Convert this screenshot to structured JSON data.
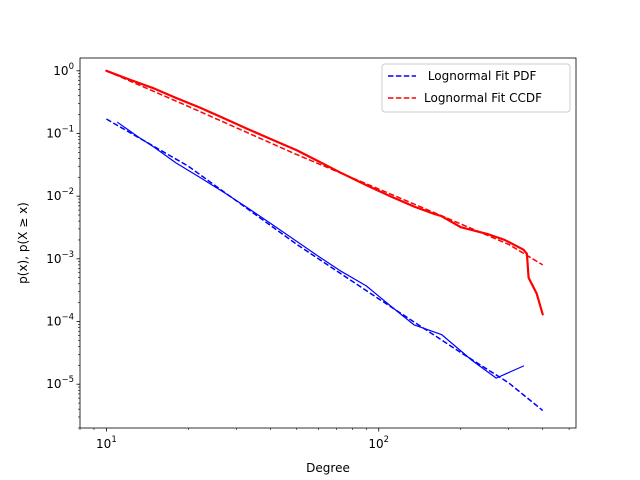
{
  "chart_data": {
    "type": "line",
    "title": "",
    "xlabel": "Degree",
    "ylabel": "p(x), p(X ≥ x)",
    "xscale": "log",
    "yscale": "log",
    "xlim": [
      8.0,
      530
    ],
    "ylim": [
      2e-06,
      1.6
    ],
    "grid": false,
    "legend_position": "top-right",
    "x_ticks": [
      {
        "value": 10,
        "base": "10",
        "exp": "1"
      },
      {
        "value": 100,
        "base": "10",
        "exp": "2"
      }
    ],
    "y_ticks": [
      {
        "value": 1e-05,
        "base": "10",
        "exp": "−5"
      },
      {
        "value": 0.0001,
        "base": "10",
        "exp": "−4"
      },
      {
        "value": 0.001,
        "base": "10",
        "exp": "−3"
      },
      {
        "value": 0.01,
        "base": "10",
        "exp": "−2"
      },
      {
        "value": 0.1,
        "base": "10",
        "exp": "−1"
      },
      {
        "value": 1,
        "base": "10",
        "exp": "0"
      }
    ],
    "series": [
      {
        "key": "pdf-empirical",
        "color": "#0000ff",
        "style": "solid",
        "width": 1.2,
        "points": [
          [
            11,
            0.15
          ],
          [
            13,
            0.09
          ],
          [
            15,
            0.06
          ],
          [
            18,
            0.034
          ],
          [
            22,
            0.02
          ],
          [
            27,
            0.0115
          ],
          [
            33,
            0.0065
          ],
          [
            40,
            0.0037
          ],
          [
            50,
            0.0019
          ],
          [
            60,
            0.0011
          ],
          [
            72,
            0.00065
          ],
          [
            90,
            0.00037
          ],
          [
            110,
            0.00018
          ],
          [
            135,
            8.8e-05
          ],
          [
            170,
            6.2e-05
          ],
          [
            220,
            2.4e-05
          ],
          [
            270,
            1.25e-05
          ],
          [
            340,
            1.95e-05
          ]
        ]
      },
      {
        "key": "pdf-fit",
        "name": " Lognormal Fit PDF",
        "color": "#0000ff",
        "style": "dashed",
        "width": 1.5,
        "points": [
          [
            10,
            0.17
          ],
          [
            20,
            0.03
          ],
          [
            50,
            0.0017
          ],
          [
            100,
            0.00023
          ],
          [
            200,
            3.2e-05
          ],
          [
            300,
            1.05e-05
          ],
          [
            400,
            3.8e-06
          ]
        ]
      },
      {
        "key": "ccdf-empirical",
        "color": "#ff0000",
        "style": "solid",
        "width": 2.2,
        "points": [
          [
            10,
            1.0
          ],
          [
            12,
            0.74
          ],
          [
            15,
            0.52
          ],
          [
            18,
            0.37
          ],
          [
            22,
            0.26
          ],
          [
            27,
            0.175
          ],
          [
            33,
            0.118
          ],
          [
            40,
            0.082
          ],
          [
            50,
            0.054
          ],
          [
            60,
            0.036
          ],
          [
            72,
            0.024
          ],
          [
            90,
            0.015
          ],
          [
            110,
            0.01
          ],
          [
            135,
            0.0068
          ],
          [
            160,
            0.0052
          ],
          [
            170,
            0.0048
          ],
          [
            200,
            0.0032
          ],
          [
            250,
            0.0025
          ],
          [
            290,
            0.002
          ],
          [
            340,
            0.0014
          ],
          [
            350,
            0.0012
          ],
          [
            355,
            0.0005
          ],
          [
            380,
            0.00028
          ],
          [
            400,
            0.00013
          ]
        ]
      },
      {
        "key": "ccdf-fit",
        "name": "Lognormal Fit CCDF",
        "color": "#ff0000",
        "style": "dashed",
        "width": 1.5,
        "points": [
          [
            10,
            1.0
          ],
          [
            20,
            0.27
          ],
          [
            50,
            0.046
          ],
          [
            100,
            0.013
          ],
          [
            200,
            0.0036
          ],
          [
            300,
            0.0017
          ],
          [
            400,
            0.0008
          ]
        ]
      }
    ]
  }
}
